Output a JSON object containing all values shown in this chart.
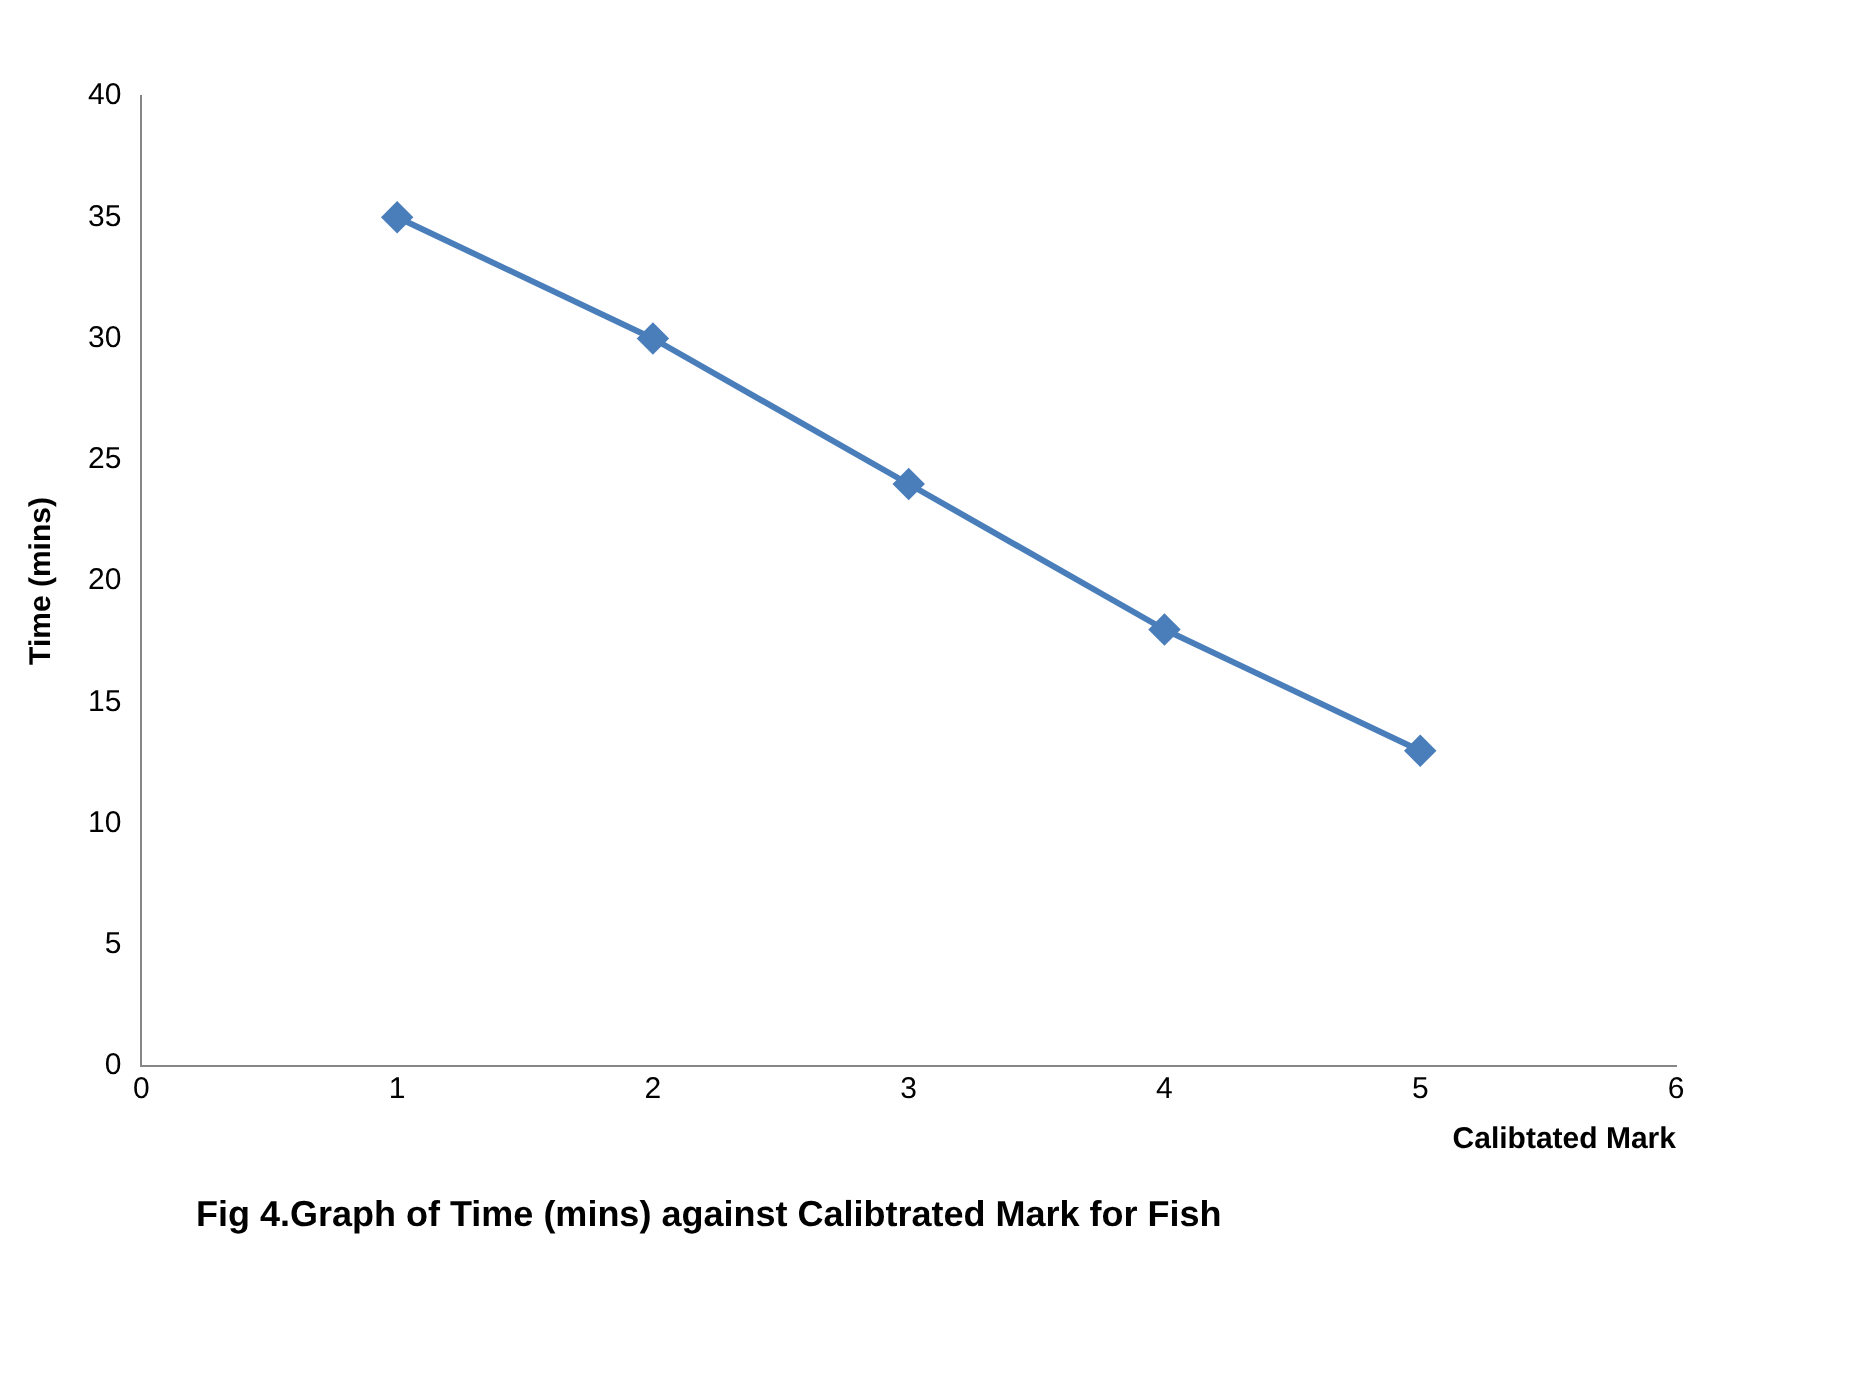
{
  "chart_data": {
    "type": "line",
    "xlabel": "Calibtated Mark",
    "ylabel": "Time (mins)",
    "x": [
      1,
      2,
      3,
      4,
      5
    ],
    "series": [
      {
        "color": "#4a7ebb",
        "values": [
          35,
          30,
          24,
          18,
          13
        ]
      }
    ],
    "xlim": [
      0,
      6
    ],
    "xticks": [
      0,
      1,
      2,
      3,
      4,
      5,
      6
    ],
    "ylim": [
      0,
      40
    ],
    "yticks": [
      0,
      5,
      10,
      15,
      20,
      25,
      30,
      35,
      40
    ],
    "grid": false,
    "marker": "diamond",
    "line_style": "solid",
    "annotations": [
      "Fig 4.Graph of Time (mins) against Calibtrated Mark for Fish"
    ]
  }
}
